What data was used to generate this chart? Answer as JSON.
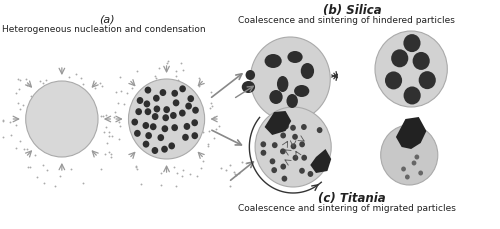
{
  "bg_color": "#ffffff",
  "title_a": "(a)",
  "subtitle_a": "Heterogeneous nucleation and condensation",
  "title_b": "(b) Silica",
  "subtitle_b": "Coalescence and sintering of hindered particles",
  "title_c": "(c) Titania",
  "subtitle_c": "Coalescence and sintering of migrated particles",
  "light_gray": "#d0d0d0",
  "sphere_gray": "#cccccc",
  "dot_dark": "#2e2e2e",
  "dot_mid": "#555555",
  "arrow_gray": "#888888",
  "text_dark": "#222222"
}
